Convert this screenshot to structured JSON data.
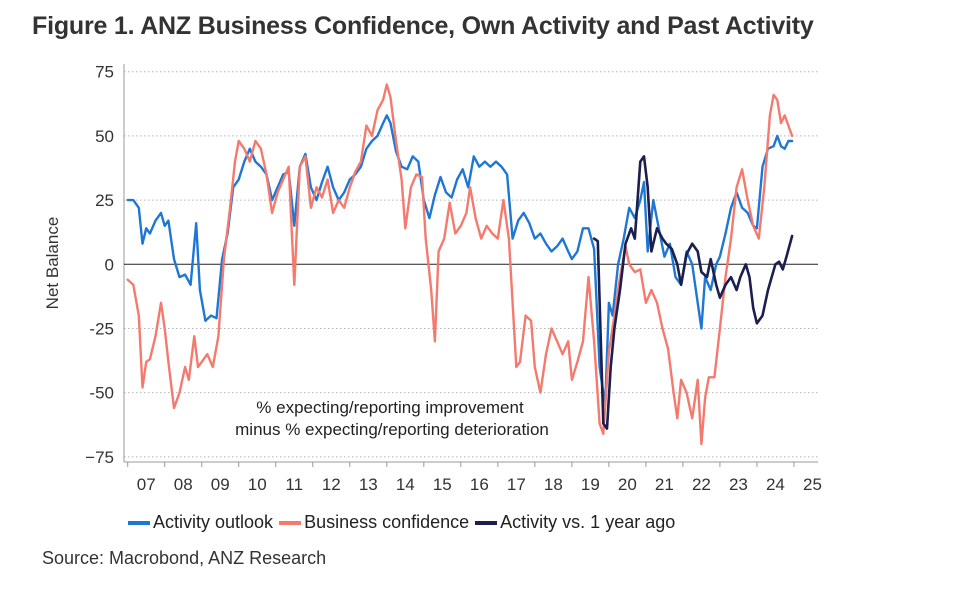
{
  "title": "Figure 1.  ANZ Business Confidence, Own Activity and Past Activity",
  "source": "Source: Macrobond, ANZ Research",
  "chart_data": {
    "type": "line",
    "ylabel": "Net Balance",
    "xlabel": "",
    "ylim": [
      -77,
      78
    ],
    "xlim": [
      2006.9,
      2025.65
    ],
    "yticks": [
      75,
      50,
      25,
      0,
      -25,
      -50,
      -75
    ],
    "ytick_labels": [
      "75",
      "50",
      "25",
      "0",
      "-25",
      "-50",
      "−75"
    ],
    "xtick_labels": [
      "07",
      "08",
      "09",
      "10",
      "11",
      "12",
      "13",
      "14",
      "15",
      "16",
      "17",
      "18",
      "19",
      "20",
      "21",
      "22",
      "23",
      "24",
      "25"
    ],
    "grid": "horizontal dotted",
    "legend_position": "bottom",
    "annotation": [
      "% expecting/reporting improvement",
      "minus % expecting/reporting deterioration"
    ],
    "series": [
      {
        "name": "Activity outlook",
        "color": "#1f77d4",
        "points": [
          [
            2007.0,
            25
          ],
          [
            2007.15,
            25
          ],
          [
            2007.3,
            22
          ],
          [
            2007.4,
            8
          ],
          [
            2007.5,
            14
          ],
          [
            2007.6,
            12
          ],
          [
            2007.75,
            17
          ],
          [
            2007.9,
            20
          ],
          [
            2008.0,
            15
          ],
          [
            2008.1,
            17
          ],
          [
            2008.25,
            2
          ],
          [
            2008.4,
            -5
          ],
          [
            2008.55,
            -4
          ],
          [
            2008.7,
            -8
          ],
          [
            2008.85,
            16
          ],
          [
            2008.95,
            -10
          ],
          [
            2009.1,
            -22
          ],
          [
            2009.25,
            -20
          ],
          [
            2009.4,
            -21
          ],
          [
            2009.55,
            2
          ],
          [
            2009.7,
            12
          ],
          [
            2009.85,
            30
          ],
          [
            2010.0,
            33
          ],
          [
            2010.15,
            40
          ],
          [
            2010.3,
            45
          ],
          [
            2010.45,
            40
          ],
          [
            2010.6,
            38
          ],
          [
            2010.75,
            35
          ],
          [
            2010.9,
            25
          ],
          [
            2011.05,
            30
          ],
          [
            2011.2,
            35
          ],
          [
            2011.35,
            36
          ],
          [
            2011.5,
            15
          ],
          [
            2011.65,
            38
          ],
          [
            2011.8,
            43
          ],
          [
            2011.95,
            30
          ],
          [
            2012.1,
            25
          ],
          [
            2012.25,
            32
          ],
          [
            2012.4,
            38
          ],
          [
            2012.55,
            30
          ],
          [
            2012.7,
            25
          ],
          [
            2012.85,
            28
          ],
          [
            2013.0,
            33
          ],
          [
            2013.15,
            35
          ],
          [
            2013.3,
            38
          ],
          [
            2013.45,
            45
          ],
          [
            2013.6,
            48
          ],
          [
            2013.75,
            50
          ],
          [
            2013.9,
            55
          ],
          [
            2014.0,
            58
          ],
          [
            2014.1,
            55
          ],
          [
            2014.25,
            44
          ],
          [
            2014.4,
            38
          ],
          [
            2014.55,
            37
          ],
          [
            2014.7,
            42
          ],
          [
            2014.85,
            40
          ],
          [
            2015.0,
            25
          ],
          [
            2015.15,
            18
          ],
          [
            2015.3,
            27
          ],
          [
            2015.45,
            34
          ],
          [
            2015.6,
            28
          ],
          [
            2015.75,
            26
          ],
          [
            2015.9,
            33
          ],
          [
            2016.05,
            37
          ],
          [
            2016.2,
            30
          ],
          [
            2016.35,
            42
          ],
          [
            2016.5,
            38
          ],
          [
            2016.65,
            40
          ],
          [
            2016.8,
            38
          ],
          [
            2016.95,
            40
          ],
          [
            2017.1,
            38
          ],
          [
            2017.25,
            35
          ],
          [
            2017.4,
            10
          ],
          [
            2017.55,
            17
          ],
          [
            2017.7,
            20
          ],
          [
            2017.85,
            16
          ],
          [
            2018.0,
            10
          ],
          [
            2018.15,
            12
          ],
          [
            2018.3,
            8
          ],
          [
            2018.45,
            5
          ],
          [
            2018.6,
            7
          ],
          [
            2018.75,
            10
          ],
          [
            2018.9,
            5
          ],
          [
            2019.0,
            2
          ],
          [
            2019.15,
            5
          ],
          [
            2019.3,
            14
          ],
          [
            2019.45,
            14
          ],
          [
            2019.6,
            6
          ],
          [
            2019.75,
            -40
          ],
          [
            2019.9,
            -55
          ],
          [
            2020.0,
            -15
          ],
          [
            2020.1,
            -20
          ],
          [
            2020.25,
            0
          ],
          [
            2020.4,
            10
          ],
          [
            2020.55,
            22
          ],
          [
            2020.7,
            18
          ],
          [
            2020.85,
            25
          ],
          [
            2020.95,
            32
          ],
          [
            2021.05,
            5
          ],
          [
            2021.2,
            25
          ],
          [
            2021.35,
            14
          ],
          [
            2021.5,
            3
          ],
          [
            2021.65,
            8
          ],
          [
            2021.8,
            -5
          ],
          [
            2021.95,
            -8
          ],
          [
            2022.1,
            5
          ],
          [
            2022.25,
            0
          ],
          [
            2022.4,
            -15
          ],
          [
            2022.5,
            -25
          ],
          [
            2022.6,
            -5
          ],
          [
            2022.75,
            -10
          ],
          [
            2022.9,
            0
          ],
          [
            2023.0,
            3
          ],
          [
            2023.15,
            12
          ],
          [
            2023.3,
            22
          ],
          [
            2023.45,
            28
          ],
          [
            2023.6,
            22
          ],
          [
            2023.75,
            20
          ],
          [
            2023.9,
            15
          ],
          [
            2024.0,
            14
          ],
          [
            2024.15,
            38
          ],
          [
            2024.3,
            45
          ],
          [
            2024.45,
            46
          ],
          [
            2024.55,
            50
          ],
          [
            2024.65,
            46
          ],
          [
            2024.75,
            45
          ],
          [
            2024.85,
            48
          ],
          [
            2024.95,
            48
          ]
        ]
      },
      {
        "name": "Business confidence",
        "color": "#f47a6e",
        "points": [
          [
            2007.0,
            -6
          ],
          [
            2007.15,
            -8
          ],
          [
            2007.3,
            -20
          ],
          [
            2007.4,
            -48
          ],
          [
            2007.5,
            -38
          ],
          [
            2007.6,
            -37
          ],
          [
            2007.75,
            -28
          ],
          [
            2007.9,
            -15
          ],
          [
            2008.0,
            -25
          ],
          [
            2008.1,
            -38
          ],
          [
            2008.25,
            -56
          ],
          [
            2008.4,
            -50
          ],
          [
            2008.55,
            -40
          ],
          [
            2008.65,
            -45
          ],
          [
            2008.8,
            -28
          ],
          [
            2008.9,
            -40
          ],
          [
            2009.0,
            -38
          ],
          [
            2009.15,
            -35
          ],
          [
            2009.3,
            -40
          ],
          [
            2009.45,
            -28
          ],
          [
            2009.6,
            2
          ],
          [
            2009.75,
            20
          ],
          [
            2009.9,
            40
          ],
          [
            2010.0,
            48
          ],
          [
            2010.15,
            45
          ],
          [
            2010.3,
            40
          ],
          [
            2010.45,
            48
          ],
          [
            2010.6,
            45
          ],
          [
            2010.75,
            35
          ],
          [
            2010.9,
            20
          ],
          [
            2011.05,
            28
          ],
          [
            2011.2,
            33
          ],
          [
            2011.35,
            38
          ],
          [
            2011.5,
            -8
          ],
          [
            2011.65,
            38
          ],
          [
            2011.8,
            42
          ],
          [
            2011.95,
            22
          ],
          [
            2012.1,
            30
          ],
          [
            2012.25,
            26
          ],
          [
            2012.4,
            33
          ],
          [
            2012.55,
            20
          ],
          [
            2012.7,
            25
          ],
          [
            2012.85,
            22
          ],
          [
            2013.0,
            30
          ],
          [
            2013.15,
            36
          ],
          [
            2013.3,
            40
          ],
          [
            2013.45,
            54
          ],
          [
            2013.6,
            50
          ],
          [
            2013.75,
            60
          ],
          [
            2013.9,
            64
          ],
          [
            2014.0,
            70
          ],
          [
            2014.1,
            65
          ],
          [
            2014.25,
            48
          ],
          [
            2014.4,
            33
          ],
          [
            2014.5,
            14
          ],
          [
            2014.65,
            30
          ],
          [
            2014.8,
            35
          ],
          [
            2014.95,
            34
          ],
          [
            2015.05,
            10
          ],
          [
            2015.2,
            -10
          ],
          [
            2015.3,
            -30
          ],
          [
            2015.4,
            5
          ],
          [
            2015.55,
            10
          ],
          [
            2015.7,
            24
          ],
          [
            2015.85,
            12
          ],
          [
            2016.0,
            15
          ],
          [
            2016.15,
            20
          ],
          [
            2016.25,
            30
          ],
          [
            2016.4,
            18
          ],
          [
            2016.55,
            10
          ],
          [
            2016.7,
            15
          ],
          [
            2016.85,
            12
          ],
          [
            2017.0,
            10
          ],
          [
            2017.15,
            25
          ],
          [
            2017.3,
            10
          ],
          [
            2017.4,
            -15
          ],
          [
            2017.5,
            -40
          ],
          [
            2017.6,
            -38
          ],
          [
            2017.75,
            -20
          ],
          [
            2017.9,
            -22
          ],
          [
            2018.0,
            -40
          ],
          [
            2018.15,
            -50
          ],
          [
            2018.3,
            -35
          ],
          [
            2018.45,
            -25
          ],
          [
            2018.6,
            -30
          ],
          [
            2018.75,
            -35
          ],
          [
            2018.9,
            -30
          ],
          [
            2019.0,
            -45
          ],
          [
            2019.15,
            -38
          ],
          [
            2019.3,
            -30
          ],
          [
            2019.45,
            -5
          ],
          [
            2019.6,
            -30
          ],
          [
            2019.75,
            -62
          ],
          [
            2019.85,
            -66
          ],
          [
            2020.0,
            -34
          ],
          [
            2020.15,
            -20
          ],
          [
            2020.3,
            -5
          ],
          [
            2020.45,
            7
          ],
          [
            2020.55,
            0
          ],
          [
            2020.7,
            -3
          ],
          [
            2020.85,
            -2
          ],
          [
            2021.0,
            -15
          ],
          [
            2021.15,
            -10
          ],
          [
            2021.3,
            -15
          ],
          [
            2021.45,
            -25
          ],
          [
            2021.6,
            -33
          ],
          [
            2021.75,
            -50
          ],
          [
            2021.85,
            -60
          ],
          [
            2021.95,
            -45
          ],
          [
            2022.1,
            -50
          ],
          [
            2022.25,
            -60
          ],
          [
            2022.4,
            -45
          ],
          [
            2022.5,
            -70
          ],
          [
            2022.6,
            -52
          ],
          [
            2022.7,
            -44
          ],
          [
            2022.85,
            -44
          ],
          [
            2023.0,
            -25
          ],
          [
            2023.15,
            -5
          ],
          [
            2023.3,
            10
          ],
          [
            2023.45,
            30
          ],
          [
            2023.6,
            37
          ],
          [
            2023.75,
            25
          ],
          [
            2023.9,
            15
          ],
          [
            2024.05,
            10
          ],
          [
            2024.2,
            30
          ],
          [
            2024.35,
            58
          ],
          [
            2024.45,
            66
          ],
          [
            2024.55,
            64
          ],
          [
            2024.65,
            55
          ],
          [
            2024.75,
            58
          ],
          [
            2024.85,
            54
          ],
          [
            2024.95,
            50
          ]
        ]
      },
      {
        "name": "Activity vs. 1 year ago",
        "color": "#1b1f4e",
        "points": [
          [
            2019.6,
            10
          ],
          [
            2019.7,
            9
          ],
          [
            2019.85,
            -62
          ],
          [
            2019.95,
            -64
          ],
          [
            2020.05,
            -40
          ],
          [
            2020.15,
            -25
          ],
          [
            2020.3,
            -10
          ],
          [
            2020.45,
            8
          ],
          [
            2020.6,
            14
          ],
          [
            2020.7,
            10
          ],
          [
            2020.85,
            40
          ],
          [
            2020.95,
            42
          ],
          [
            2021.05,
            30
          ],
          [
            2021.15,
            5
          ],
          [
            2021.3,
            14
          ],
          [
            2021.45,
            10
          ],
          [
            2021.55,
            8
          ],
          [
            2021.7,
            6
          ],
          [
            2021.85,
            0
          ],
          [
            2021.95,
            -8
          ],
          [
            2022.1,
            4
          ],
          [
            2022.25,
            8
          ],
          [
            2022.4,
            5
          ],
          [
            2022.5,
            -3
          ],
          [
            2022.65,
            -5
          ],
          [
            2022.75,
            2
          ],
          [
            2022.9,
            -8
          ],
          [
            2023.0,
            -13
          ],
          [
            2023.15,
            -8
          ],
          [
            2023.3,
            -5
          ],
          [
            2023.45,
            -10
          ],
          [
            2023.55,
            -5
          ],
          [
            2023.7,
            0
          ],
          [
            2023.8,
            -5
          ],
          [
            2023.9,
            -17
          ],
          [
            2024.0,
            -23
          ],
          [
            2024.15,
            -20
          ],
          [
            2024.3,
            -10
          ],
          [
            2024.4,
            -5
          ],
          [
            2024.5,
            0
          ],
          [
            2024.6,
            1
          ],
          [
            2024.7,
            -2
          ],
          [
            2024.8,
            3
          ],
          [
            2024.95,
            11
          ]
        ]
      }
    ]
  }
}
